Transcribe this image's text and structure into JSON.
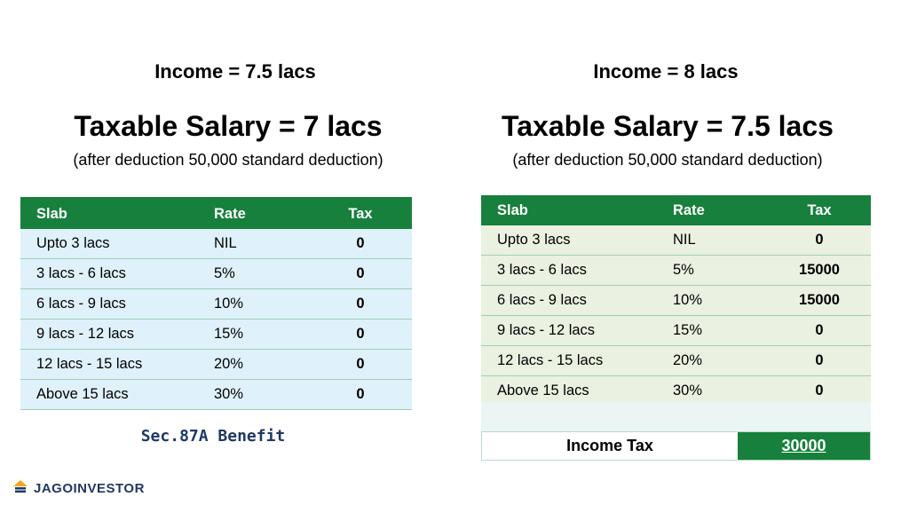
{
  "left": {
    "income": "Income = 7.5 lacs",
    "taxable": "Taxable Salary = 7 lacs",
    "note": "(after deduction 50,000 standard deduction)",
    "headers": [
      "Slab",
      "Rate",
      "Tax"
    ],
    "rows": [
      [
        "Upto 3 lacs",
        "NIL",
        "0"
      ],
      [
        "3 lacs - 6 lacs",
        "5%",
        "0"
      ],
      [
        "6 lacs - 9 lacs",
        "10%",
        "0"
      ],
      [
        "9 lacs - 12 lacs",
        "15%",
        "0"
      ],
      [
        "12 lacs - 15 lacs",
        "20%",
        "0"
      ],
      [
        "Above 15 lacs",
        "30%",
        "0"
      ]
    ],
    "benefit": "Sec.87A Benefit"
  },
  "right": {
    "income": "Income = 8 lacs",
    "taxable": "Taxable Salary = 7.5 lacs",
    "note": "(after deduction 50,000 standard deduction)",
    "headers": [
      "Slab",
      "Rate",
      "Tax"
    ],
    "rows": [
      [
        "Upto 3 lacs",
        "NIL",
        "0"
      ],
      [
        "3 lacs - 6 lacs",
        "5%",
        "15000"
      ],
      [
        "6 lacs - 9 lacs",
        "10%",
        "15000"
      ],
      [
        "9 lacs - 12 lacs",
        "15%",
        "0"
      ],
      [
        "12 lacs - 15 lacs",
        "20%",
        "0"
      ],
      [
        "Above 15 lacs",
        "30%",
        "0"
      ]
    ],
    "total_label": "Income Tax",
    "total_value": "30000"
  },
  "logo": {
    "text": "JAGOINVESTOR",
    "icon": "stacked-coins-icon"
  },
  "colors": {
    "header_green": "#17803c",
    "left_row_bg": "#dff1fa",
    "right_row_bg": "#eaf1e0",
    "benefit_text": "#1f3864"
  }
}
